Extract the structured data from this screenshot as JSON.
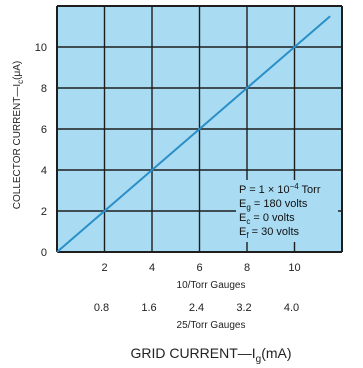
{
  "chart_data": {
    "type": "line",
    "ylabel_main": "COLLECTOR CURRENT—I",
    "ylabel_sub": "c",
    "ylabel_unit": "(μA)",
    "xlabel_main": "GRID CURRENT—I",
    "xlabel_sub": "g",
    "xlabel_unit": "(mA)",
    "xlim": [
      0,
      12
    ],
    "ylim": [
      0,
      12
    ],
    "y_ticks": [
      "0",
      "2",
      "4",
      "6",
      "8",
      "10"
    ],
    "y_tick_values": [
      0,
      2,
      4,
      6,
      8,
      10
    ],
    "x_ticks": [
      "2",
      "4",
      "6",
      "8",
      "10"
    ],
    "x_tick_values": [
      2,
      4,
      6,
      8,
      10
    ],
    "x_axis_title": "10/Torr Gauges",
    "x2_ticks": [
      "0.8",
      "1.6",
      "2.4",
      "3.2",
      "4.0"
    ],
    "x2_axis_title": "25/Torr Gauges",
    "grid": true,
    "series": [
      {
        "x": [
          0,
          11.5
        ],
        "y": [
          0,
          11.5
        ],
        "color": "#2a8fc9"
      }
    ],
    "annotation_lines": [
      {
        "base": "P = 1 × 10",
        "sup": "−4",
        "tail": " Torr"
      },
      {
        "base": "E",
        "sub": "g",
        "tail": " = 180 volts"
      },
      {
        "base": "E",
        "sub": "c",
        "tail": " = 0 volts"
      },
      {
        "base": "E",
        "sub": "f",
        "tail": " = 30 volts"
      }
    ],
    "colors": {
      "plot_bg": "#a9dbf2",
      "grid": "#1e1e1e",
      "line": "#2a8fc9"
    }
  }
}
